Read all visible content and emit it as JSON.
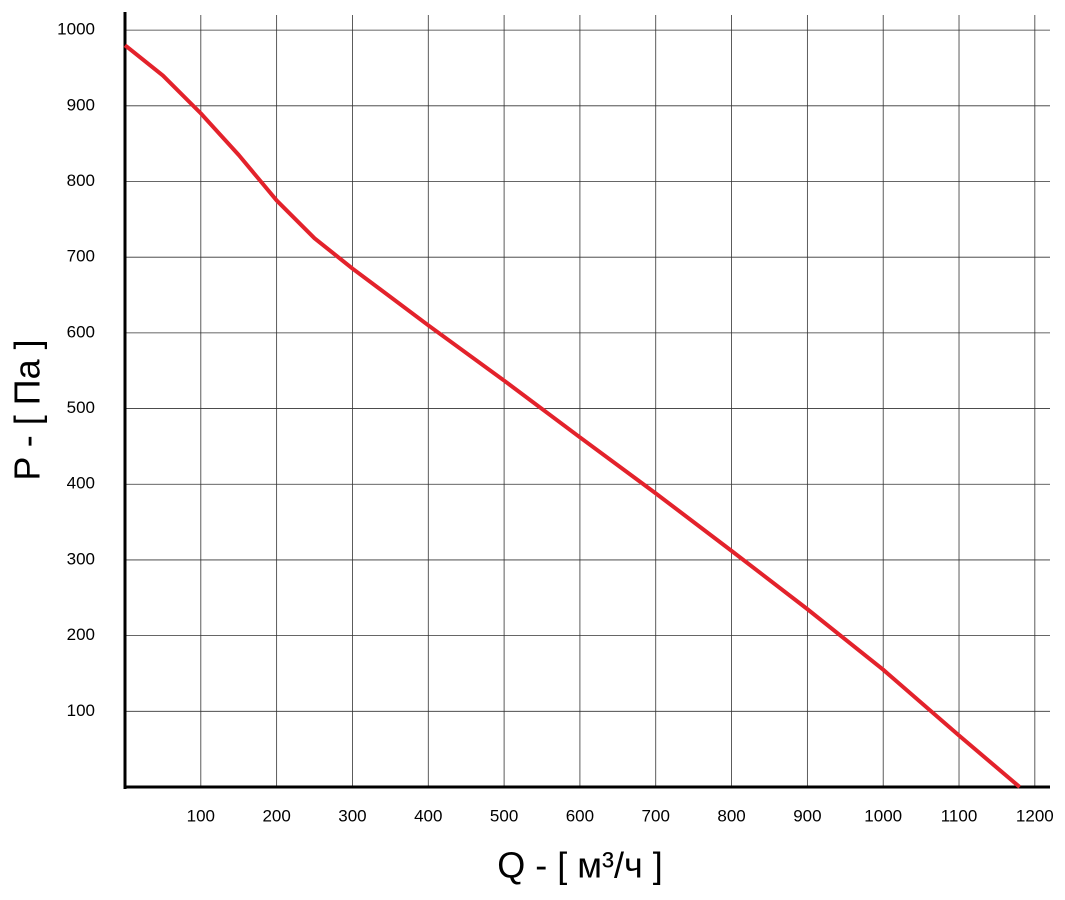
{
  "chart_data": {
    "type": "line",
    "x_label": "Q - [ м³/ч ]",
    "y_label": "P - [ Па ]",
    "x": [
      0,
      50,
      100,
      150,
      200,
      250,
      300,
      400,
      500,
      600,
      700,
      800,
      900,
      1000,
      1100,
      1180
    ],
    "values": [
      980,
      940,
      890,
      835,
      775,
      725,
      685,
      610,
      537,
      462,
      388,
      312,
      235,
      155,
      68,
      0
    ],
    "color": "#e3222b",
    "xlim": [
      0,
      1220
    ],
    "ylim": [
      0,
      1020
    ],
    "xticks": [
      100,
      200,
      300,
      400,
      500,
      600,
      700,
      800,
      900,
      1000,
      1100,
      1200
    ],
    "yticks": [
      100,
      200,
      300,
      400,
      500,
      600,
      700,
      800,
      900,
      1000
    ],
    "grid": true
  }
}
